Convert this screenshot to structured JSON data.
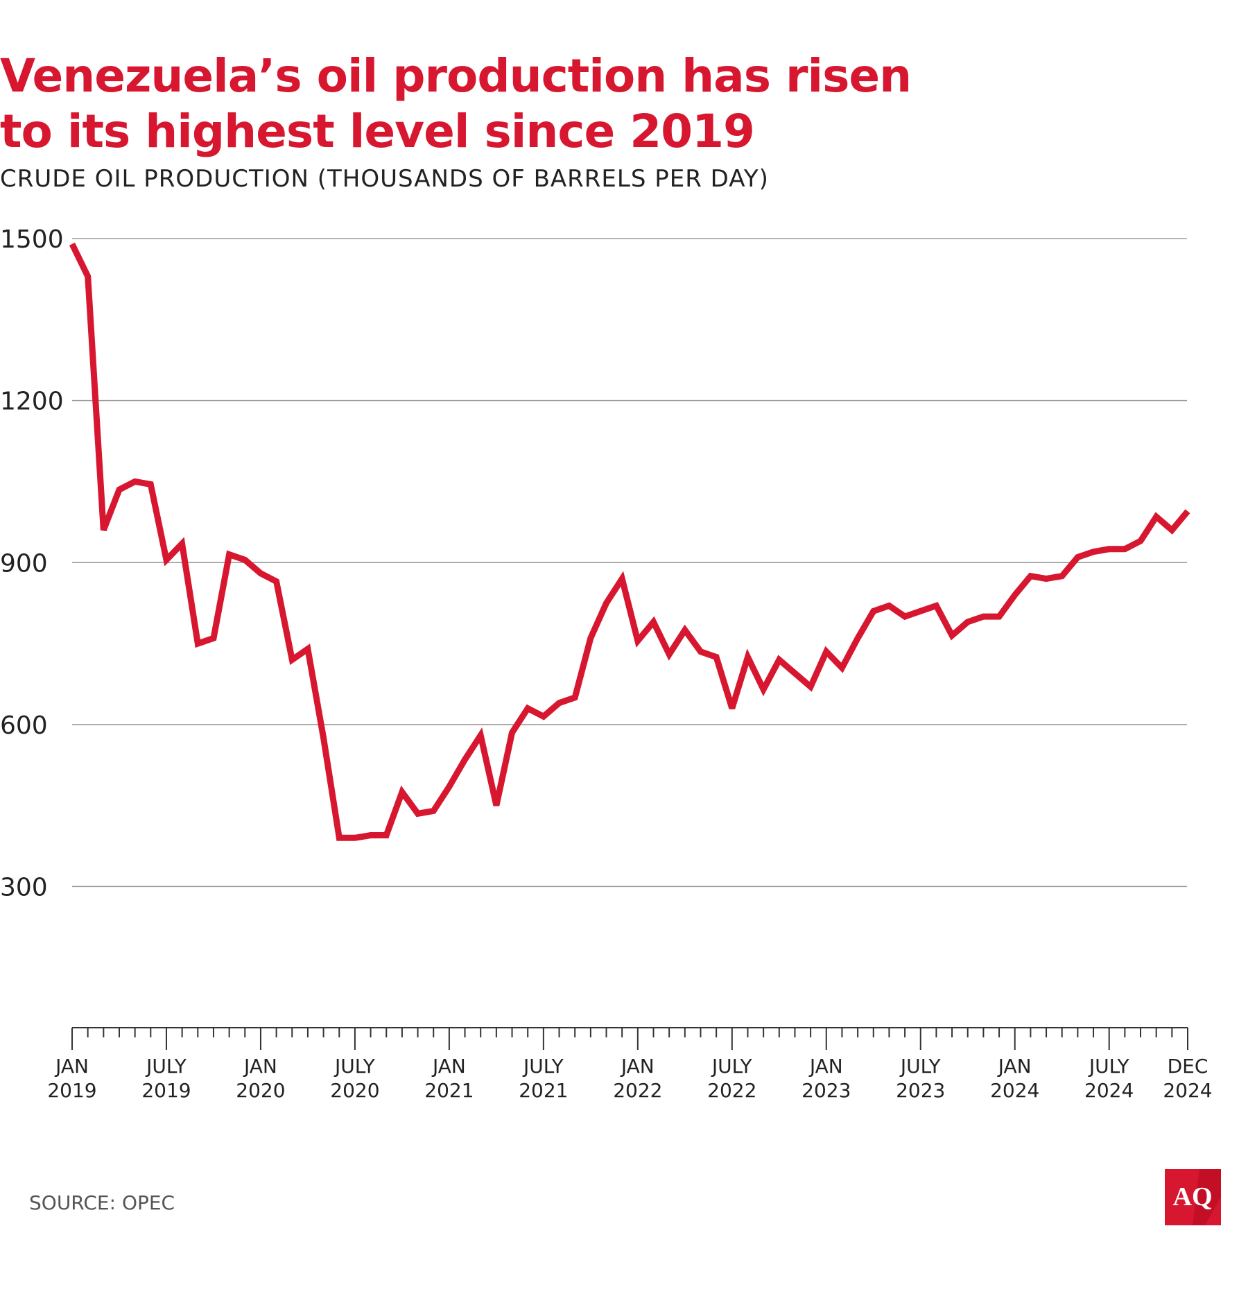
{
  "header": {
    "title_line1": "Venezuela’s oil production has risen",
    "title_line2": "to its highest level since 2019",
    "subtitle": "CRUDE OIL PRODUCTION (THOUSANDS OF BARRELS PER DAY)"
  },
  "footer": {
    "source": "SOURCE: OPEC",
    "logo_text": "AQ"
  },
  "colors": {
    "accent": "#d7172f",
    "grid": "#9a9a9a",
    "text": "#222222"
  },
  "chart_data": {
    "type": "line",
    "title": "Venezuela’s oil production has risen to its highest level since 2019",
    "ylabel": "CRUDE OIL PRODUCTION (THOUSANDS OF BARRELS PER DAY)",
    "xlabel": "",
    "ylim": [
      0,
      1500
    ],
    "yticks": [
      300,
      600,
      900,
      1200,
      1500
    ],
    "grid": true,
    "x_start": "JAN 2019",
    "x_end": "DEC 2024",
    "x_tick_labels": [
      {
        "month_index": 0,
        "line1": "JAN",
        "line2": "2019"
      },
      {
        "month_index": 6,
        "line1": "JULY",
        "line2": "2019"
      },
      {
        "month_index": 12,
        "line1": "JAN",
        "line2": "2020"
      },
      {
        "month_index": 18,
        "line1": "JULY",
        "line2": "2020"
      },
      {
        "month_index": 24,
        "line1": "JAN",
        "line2": "2021"
      },
      {
        "month_index": 30,
        "line1": "JULY",
        "line2": "2021"
      },
      {
        "month_index": 36,
        "line1": "JAN",
        "line2": "2022"
      },
      {
        "month_index": 42,
        "line1": "JULY",
        "line2": "2022"
      },
      {
        "month_index": 48,
        "line1": "JAN",
        "line2": "2023"
      },
      {
        "month_index": 54,
        "line1": "JULY",
        "line2": "2023"
      },
      {
        "month_index": 60,
        "line1": "JAN",
        "line2": "2024"
      },
      {
        "month_index": 66,
        "line1": "JULY",
        "line2": "2024"
      },
      {
        "month_index": 71,
        "line1": "DEC",
        "line2": "2024"
      }
    ],
    "series": [
      {
        "name": "Crude oil production",
        "color": "#d7172f",
        "values": [
          1490,
          1430,
          960,
          1035,
          1050,
          1045,
          905,
          935,
          750,
          760,
          915,
          905,
          880,
          865,
          720,
          740,
          575,
          390,
          390,
          395,
          395,
          475,
          435,
          440,
          485,
          535,
          580,
          450,
          585,
          630,
          615,
          640,
          650,
          760,
          825,
          870,
          755,
          790,
          730,
          775,
          735,
          725,
          630,
          725,
          665,
          720,
          695,
          670,
          735,
          705,
          760,
          810,
          820,
          800,
          810,
          820,
          765,
          790,
          800,
          800,
          840,
          875,
          870,
          875,
          910,
          920,
          925,
          925,
          940,
          985,
          960,
          995
        ]
      }
    ]
  }
}
